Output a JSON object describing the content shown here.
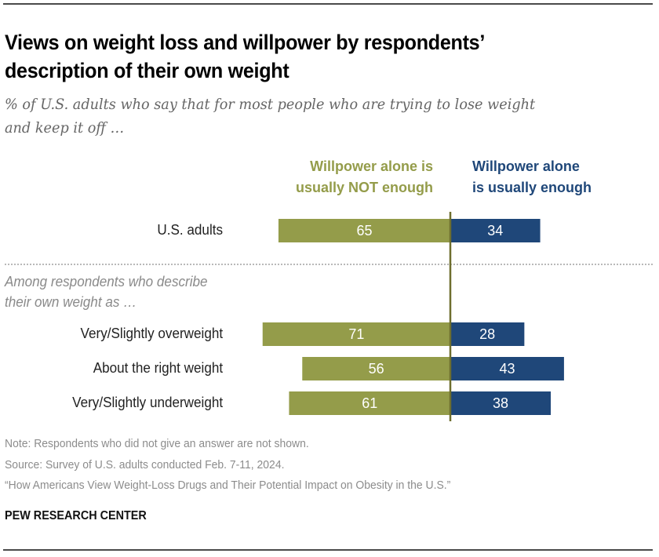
{
  "header": {
    "title_line1": "Views on weight loss and willpower by respondents’",
    "title_line2": "description of their own weight",
    "subtitle_line1": "% of U.S. adults who say that for most people who are trying to lose weight",
    "subtitle_line2": "and keep it off …"
  },
  "colors": {
    "not_enough": "#949c4a",
    "enough": "#1f4779",
    "axis": "#6e6e2e",
    "bar_label": "#ffffff"
  },
  "chart_data": {
    "type": "bar",
    "orientation": "horizontal-diverging",
    "title": "Views on weight loss and willpower by respondents’ description of their own weight",
    "subtitle": "% of U.S. adults who say that for most people who are trying to lose weight and keep it off …",
    "legend": [
      {
        "name": "Willpower alone is usually NOT enough",
        "line1": "Willpower alone is",
        "line2": "usually NOT enough",
        "side": "left"
      },
      {
        "name": "Willpower alone is usually enough",
        "line1": "Willpower alone",
        "line2": "is usually enough",
        "side": "right"
      }
    ],
    "group_label_line1": "Among respondents who describe",
    "group_label_line2": "their own weight as …",
    "categories": [
      "U.S. adults",
      "Very/Slightly overweight",
      "About the right weight",
      "Very/Slightly underweight"
    ],
    "series": [
      {
        "name": "Willpower alone is usually NOT enough",
        "values": [
          65,
          71,
          56,
          61
        ]
      },
      {
        "name": "Willpower alone is usually enough",
        "values": [
          34,
          28,
          43,
          38
        ]
      }
    ],
    "xlim": [
      -100,
      100
    ],
    "grid": false
  },
  "footer": {
    "note": "Note: Respondents who did not give an answer are not shown.",
    "source": "Source: Survey of U.S. adults conducted Feb. 7-11, 2024.",
    "report": "“How Americans View Weight-Loss Drugs and Their Potential Impact on Obesity in the U.S.”",
    "brand": "PEW RESEARCH CENTER"
  }
}
